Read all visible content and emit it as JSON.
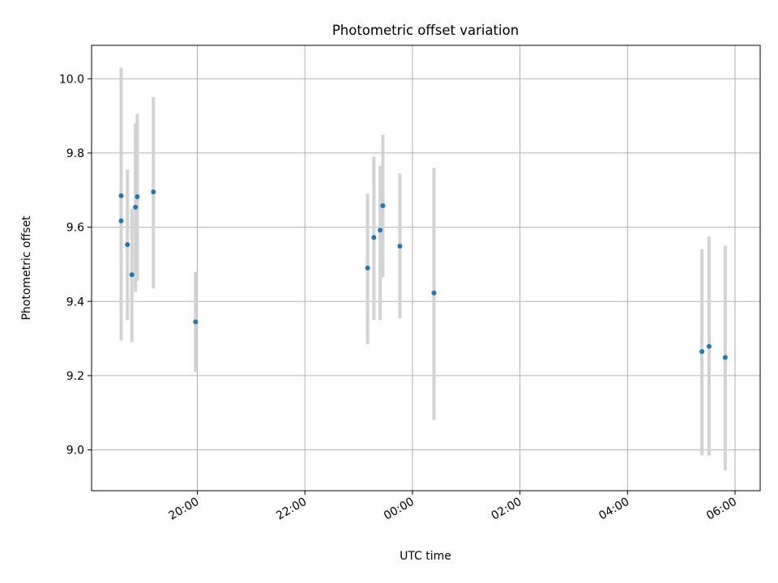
{
  "chart_data": {
    "type": "scatter",
    "title": "Photometric offset variation",
    "xlabel": "UTC time",
    "ylabel": "Photometric offset",
    "x_axis": {
      "kind": "time",
      "range": [
        "18:02",
        "06:28"
      ],
      "ticks": [
        "20:00",
        "22:00",
        "00:00",
        "02:00",
        "04:00",
        "06:00"
      ],
      "tick_label_rotation": 30
    },
    "y_axis": {
      "range": [
        8.89,
        10.09
      ],
      "ticks": [
        9.0,
        9.2,
        9.4,
        9.6,
        9.8,
        10.0
      ],
      "tick_labels": [
        "9.0",
        "9.2",
        "9.4",
        "9.6",
        "9.8",
        "10.0"
      ]
    },
    "grid": true,
    "colors": {
      "point": "#1f77b4",
      "errorbar": "#d3d3d3"
    },
    "points": [
      {
        "time": "18:35",
        "y": 9.685,
        "err_low": 9.295,
        "err_high": 10.03
      },
      {
        "time": "18:35",
        "y": 9.617,
        "err_low": 9.295,
        "err_high": 9.94
      },
      {
        "time": "18:42",
        "y": 9.553,
        "err_low": 9.35,
        "err_high": 9.755
      },
      {
        "time": "18:47",
        "y": 9.472,
        "err_low": 9.29,
        "err_high": 9.65
      },
      {
        "time": "18:51",
        "y": 9.654,
        "err_low": 9.425,
        "err_high": 9.88
      },
      {
        "time": "18:53",
        "y": 9.682,
        "err_low": 9.455,
        "err_high": 9.905
      },
      {
        "time": "19:11",
        "y": 9.695,
        "err_low": 9.435,
        "err_high": 9.95
      },
      {
        "time": "19:58",
        "y": 9.345,
        "err_low": 9.21,
        "err_high": 9.48
      },
      {
        "time": "23:10",
        "y": 9.49,
        "err_low": 9.285,
        "err_high": 9.69
      },
      {
        "time": "23:17",
        "y": 9.572,
        "err_low": 9.35,
        "err_high": 9.79
      },
      {
        "time": "23:24",
        "y": 9.592,
        "err_low": 9.35,
        "err_high": 9.765
      },
      {
        "time": "23:27",
        "y": 9.658,
        "err_low": 9.465,
        "err_high": 9.85
      },
      {
        "time": "23:46",
        "y": 9.549,
        "err_low": 9.355,
        "err_high": 9.745
      },
      {
        "time": "00:24",
        "y": 9.423,
        "err_low": 9.08,
        "err_high": 9.76
      },
      {
        "time": "05:23",
        "y": 9.265,
        "err_low": 8.985,
        "err_high": 9.54
      },
      {
        "time": "05:31",
        "y": 9.279,
        "err_low": 8.985,
        "err_high": 9.575
      },
      {
        "time": "05:49",
        "y": 9.249,
        "err_low": 8.945,
        "err_high": 9.55
      }
    ]
  }
}
